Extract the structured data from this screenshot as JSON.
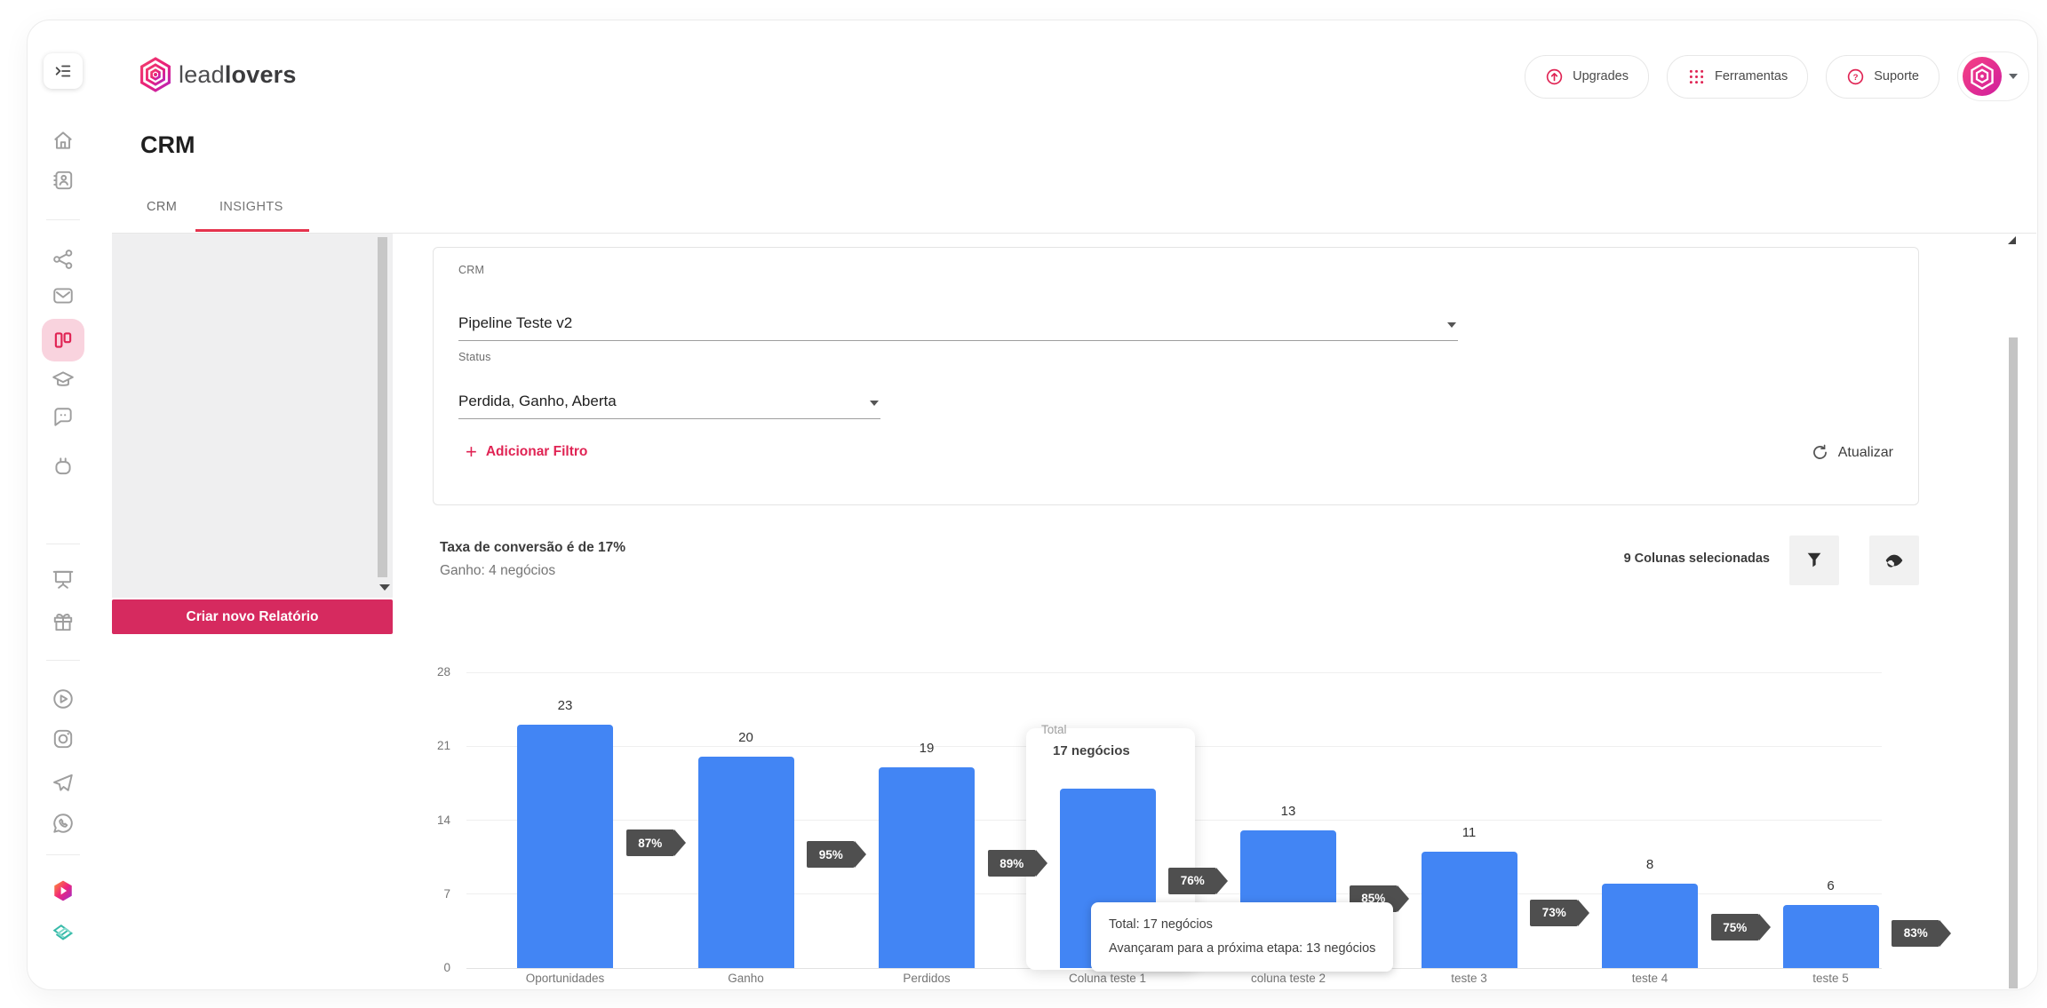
{
  "brand": {
    "logo_light": "lead",
    "logo_bold": "lovers",
    "accent_color": "#e02454",
    "button_pink": "#d62a5f"
  },
  "header": {
    "upgrades_label": "Upgrades",
    "ferramentas_label": "Ferramentas",
    "suporte_label": "Suporte"
  },
  "sidebar": {
    "active": "kanban",
    "icons": [
      "menu-toggle",
      "home",
      "contacts",
      "share",
      "mail",
      "kanban",
      "education",
      "chat",
      "bot",
      "presentation",
      "gift",
      "play-circle",
      "instagram",
      "telegram",
      "whatsapp",
      "leadlovers-play",
      "books"
    ]
  },
  "page": {
    "title": "CRM",
    "tabs": [
      {
        "label": "CRM",
        "active": false
      },
      {
        "label": "INSIGHTS",
        "active": true
      }
    ]
  },
  "reports_panel": {
    "create_button": "Criar novo Relatório"
  },
  "filters": {
    "crm_label": "CRM",
    "crm_value": "Pipeline Teste v2",
    "status_label": "Status",
    "status_value": "Perdida, Ganho, Aberta",
    "add_filter_label": "Adicionar Filtro",
    "refresh_label": "Atualizar"
  },
  "stats": {
    "conversion_text": "Taxa de conversão é de 17%",
    "ganho_text": "Ganho: 4 negócios",
    "columns_selected": "9 Colunas selecionadas"
  },
  "chart_data": {
    "type": "bar",
    "categories": [
      "Oportunidades",
      "Ganho",
      "Perdidos",
      "Coluna teste 1",
      "coluna teste 2",
      "teste 3",
      "teste 4",
      "teste 5"
    ],
    "values": [
      23,
      20,
      19,
      17,
      13,
      11,
      8,
      6
    ],
    "conversion_badges": [
      "87%",
      "95%",
      "89%",
      "76%",
      "85%",
      "73%",
      "75%",
      "83%"
    ],
    "yticks": [
      0,
      7,
      14,
      21,
      28
    ],
    "ylim": [
      0,
      28
    ],
    "grid": true,
    "bar_color": "#4285f4",
    "badge_color": "#4f4f4f",
    "hovered_index": 3,
    "hover_label_title": "Total",
    "hover_label_value": "17 negócios",
    "tooltip": {
      "line1": "Total: 17 negócios",
      "line2": "Avançaram para a próxima etapa: 13 negócios"
    }
  }
}
